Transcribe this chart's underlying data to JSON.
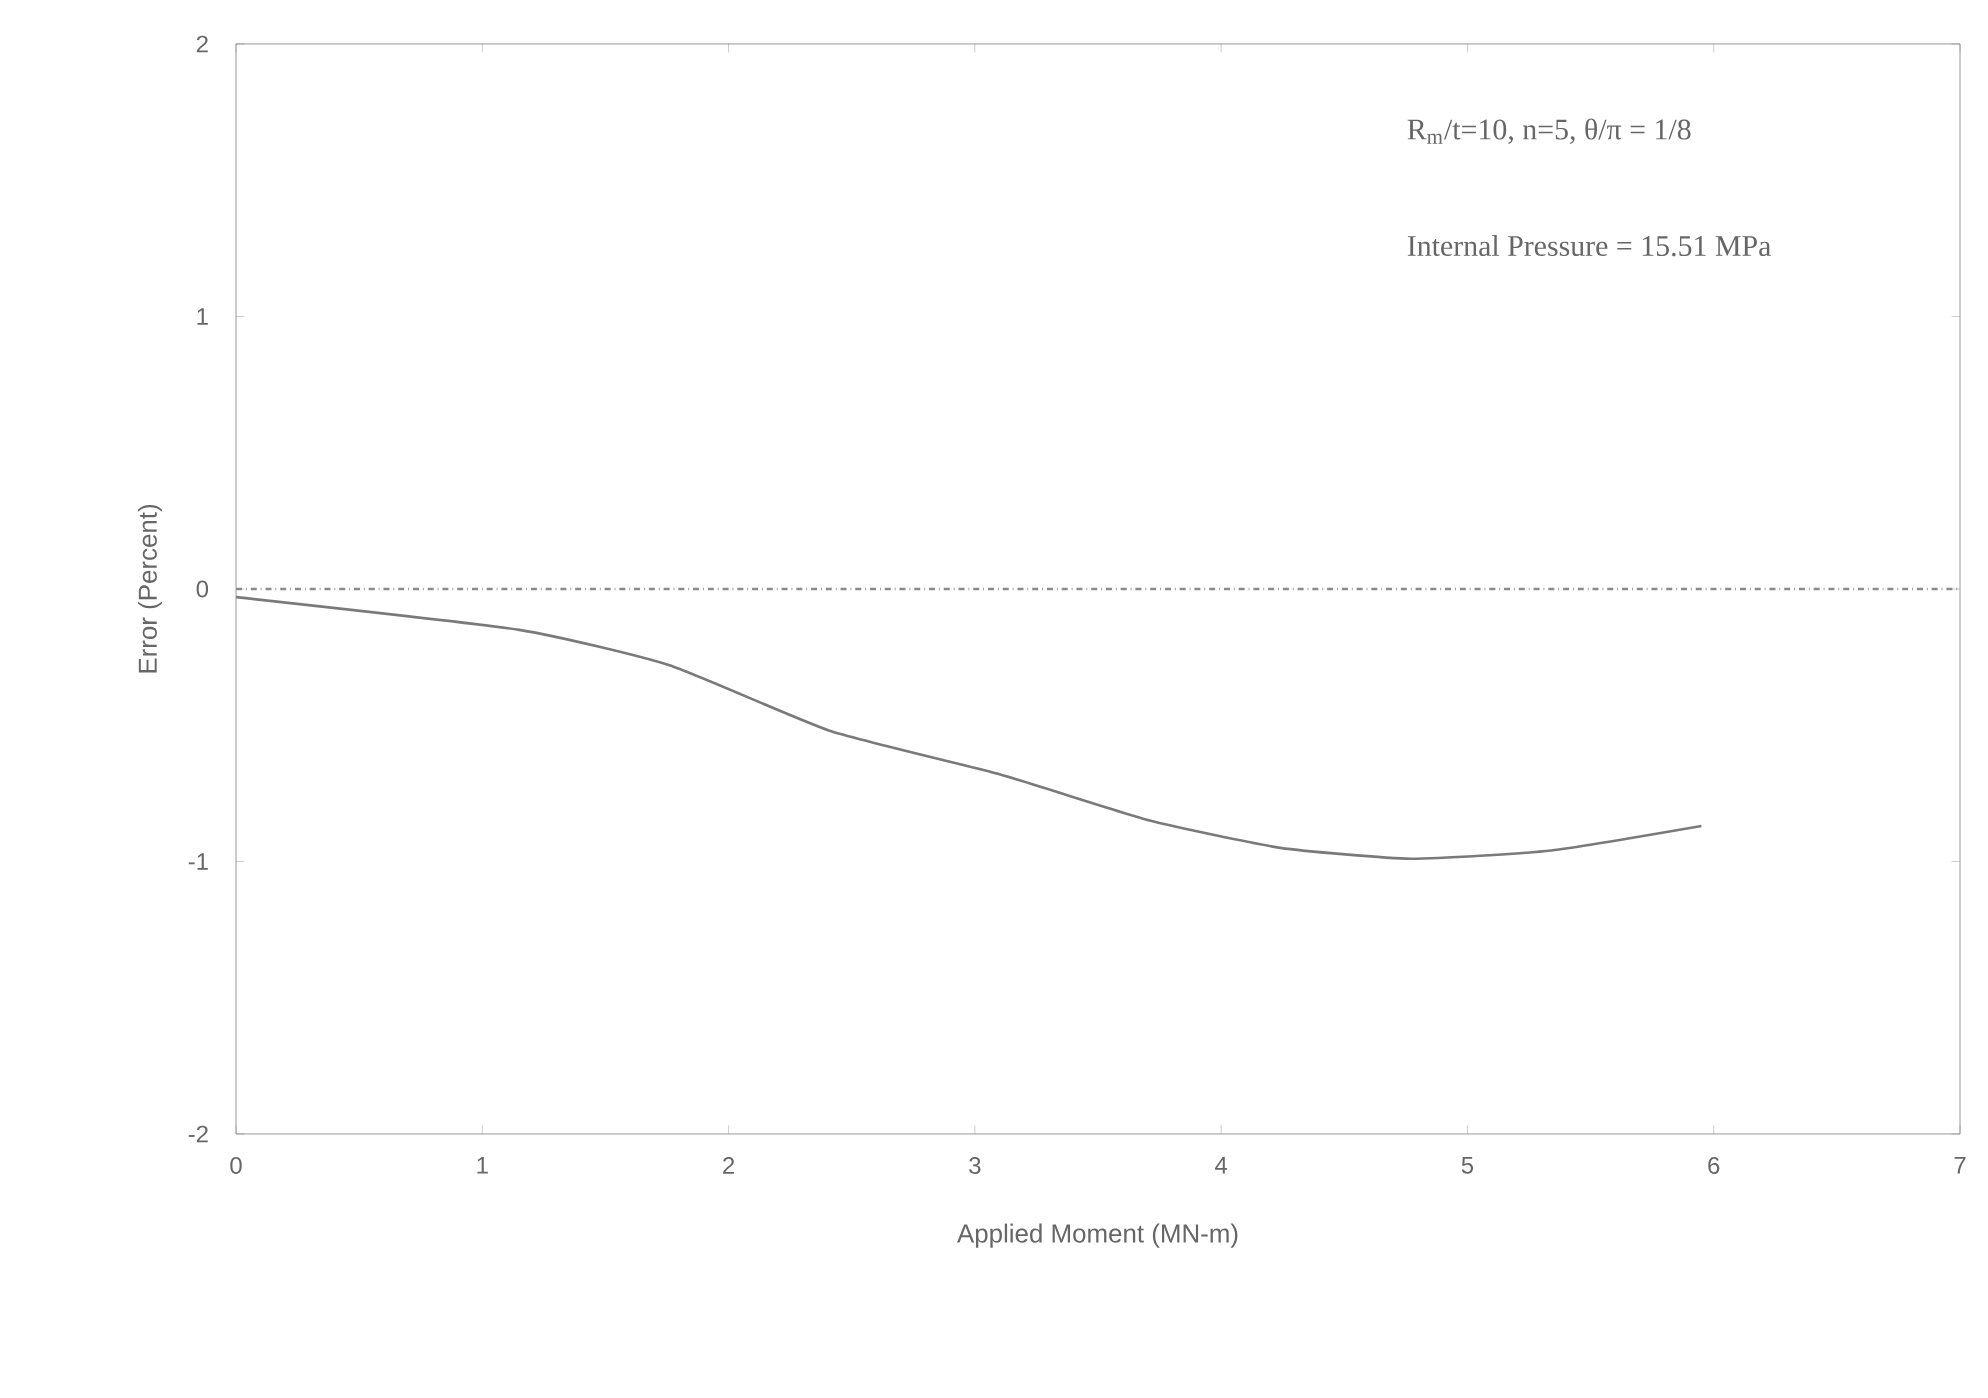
{
  "chart_data": {
    "type": "line",
    "xlabel": "Applied Moment (MN-m)",
    "ylabel": "Error (Percent)",
    "annotations": [
      "R$_{m}$/t=10, n=5, θ/π = 1/8",
      "Internal Pressure = 15.51 MPa"
    ],
    "x": [
      0,
      1.15,
      1.76,
      2.41,
      3.1,
      3.71,
      4.24,
      4.77,
      5.34,
      5.95
    ],
    "series": [
      {
        "color": "#7a7a7a",
        "values": [
          -0.03,
          -0.15,
          -0.28,
          -0.52,
          -0.68,
          -0.85,
          -0.95,
          -0.99,
          -0.96,
          -0.87
        ]
      }
    ],
    "xlim": [
      0,
      7
    ],
    "ylim": [
      -2,
      2
    ],
    "xticks": [
      0,
      1,
      2,
      3,
      4,
      5,
      6,
      7
    ],
    "yticks": [
      -2,
      -1,
      0,
      1,
      2
    ],
    "ref_lines": [
      {
        "axis": "y",
        "value": 0,
        "color": "#8a8a8a",
        "line_style": "dashdot"
      }
    ],
    "grid": false,
    "marker": "none",
    "line_style": "solid"
  }
}
